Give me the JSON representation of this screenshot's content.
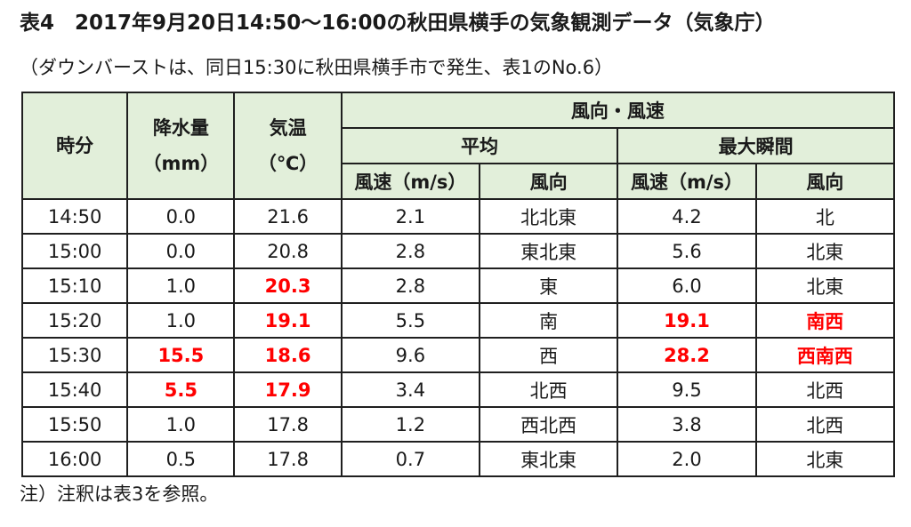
{
  "title": "表4　2017年9月20日14:50～16:00の秋田県横手の気象観測データ（気象庁）",
  "subtitle": "（ダウンバーストは、同日15:30に秋田県横手市で発生、表1のNo.6）",
  "note": "注）注釈は表3を参照。",
  "highlight_color": "#ff0000",
  "header_bg_color": "#e2efda",
  "headers": {
    "time": "時分",
    "precip_line1": "降水量",
    "precip_line2": "（mm）",
    "temp_line1": "気温",
    "temp_line2": "（℃）",
    "wind": "風向・風速",
    "average": "平均",
    "max_gust": "最大瞬間",
    "avg_speed": "風速（m/s）",
    "avg_dir": "風向",
    "gust_speed": "風速（m/s）",
    "gust_dir": "風向"
  },
  "rows": [
    {
      "time": "14:50",
      "precip": "0.0",
      "temp": "21.6",
      "avg_speed": "2.1",
      "avg_dir": "北北東",
      "gust_speed": "4.2",
      "gust_dir": "北",
      "highlight": []
    },
    {
      "time": "15:00",
      "precip": "0.0",
      "temp": "20.8",
      "avg_speed": "2.8",
      "avg_dir": "東北東",
      "gust_speed": "5.6",
      "gust_dir": "北東",
      "highlight": []
    },
    {
      "time": "15:10",
      "precip": "1.0",
      "temp": "20.3",
      "avg_speed": "2.8",
      "avg_dir": "東",
      "gust_speed": "6.0",
      "gust_dir": "北東",
      "highlight": [
        "temp"
      ]
    },
    {
      "time": "15:20",
      "precip": "1.0",
      "temp": "19.1",
      "avg_speed": "5.5",
      "avg_dir": "南",
      "gust_speed": "19.1",
      "gust_dir": "南西",
      "highlight": [
        "temp",
        "gust_speed",
        "gust_dir"
      ]
    },
    {
      "time": "15:30",
      "precip": "15.5",
      "temp": "18.6",
      "avg_speed": "9.6",
      "avg_dir": "西",
      "gust_speed": "28.2",
      "gust_dir": "西南西",
      "highlight": [
        "precip",
        "temp",
        "gust_speed",
        "gust_dir"
      ]
    },
    {
      "time": "15:40",
      "precip": "5.5",
      "temp": "17.9",
      "avg_speed": "3.4",
      "avg_dir": "北西",
      "gust_speed": "9.5",
      "gust_dir": "北西",
      "highlight": [
        "precip",
        "temp"
      ]
    },
    {
      "time": "15:50",
      "precip": "1.0",
      "temp": "17.8",
      "avg_speed": "1.2",
      "avg_dir": "西北西",
      "gust_speed": "3.8",
      "gust_dir": "北西",
      "highlight": []
    },
    {
      "time": "16:00",
      "precip": "0.5",
      "temp": "17.8",
      "avg_speed": "0.7",
      "avg_dir": "東北東",
      "gust_speed": "2.0",
      "gust_dir": "北東",
      "highlight": []
    }
  ]
}
